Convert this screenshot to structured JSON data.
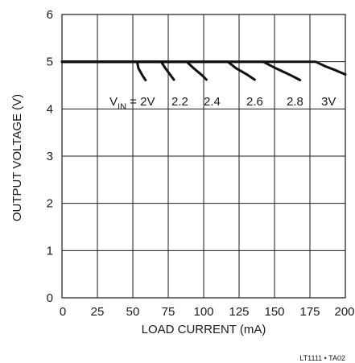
{
  "chart_data": {
    "type": "line",
    "xlabel": "LOAD CURRENT (mA)",
    "ylabel": "OUTPUT VOLTAGE (V)",
    "xlim": [
      0,
      200
    ],
    "ylim": [
      0,
      6
    ],
    "x_ticks": [
      0,
      25,
      50,
      75,
      100,
      125,
      150,
      175,
      200
    ],
    "y_ticks": [
      0,
      1,
      2,
      3,
      4,
      5,
      6
    ],
    "grid": true,
    "nominal_output": 5.0,
    "series": [
      {
        "name": "VIN = 2V",
        "label_main": "V",
        "label_sub": "IN",
        "label_rest": " = 2V",
        "points": [
          [
            0,
            5.0
          ],
          [
            53,
            5.0
          ],
          [
            54,
            4.86
          ],
          [
            57,
            4.7
          ],
          [
            59,
            4.61
          ]
        ]
      },
      {
        "name": "2.2",
        "points": [
          [
            0,
            5.0
          ],
          [
            70,
            5.0
          ],
          [
            73,
            4.86
          ],
          [
            77,
            4.7
          ],
          [
            79,
            4.62
          ]
        ]
      },
      {
        "name": "2.4",
        "points": [
          [
            0,
            5.0
          ],
          [
            88,
            5.0
          ],
          [
            93,
            4.86
          ],
          [
            99,
            4.71
          ],
          [
            102,
            4.62
          ]
        ]
      },
      {
        "name": "2.6",
        "points": [
          [
            0,
            5.0
          ],
          [
            117,
            5.0
          ],
          [
            123,
            4.86
          ],
          [
            131,
            4.72
          ],
          [
            136,
            4.62
          ]
        ]
      },
      {
        "name": "2.8",
        "points": [
          [
            0,
            5.0
          ],
          [
            142,
            5.0
          ],
          [
            151,
            4.86
          ],
          [
            161,
            4.72
          ],
          [
            168,
            4.61
          ]
        ]
      },
      {
        "name": "3V",
        "points": [
          [
            0,
            5.0
          ],
          [
            179,
            5.0
          ],
          [
            186,
            4.9
          ],
          [
            193,
            4.82
          ],
          [
            200,
            4.73
          ]
        ]
      }
    ]
  },
  "figure_code": "LT1111 • TA02"
}
